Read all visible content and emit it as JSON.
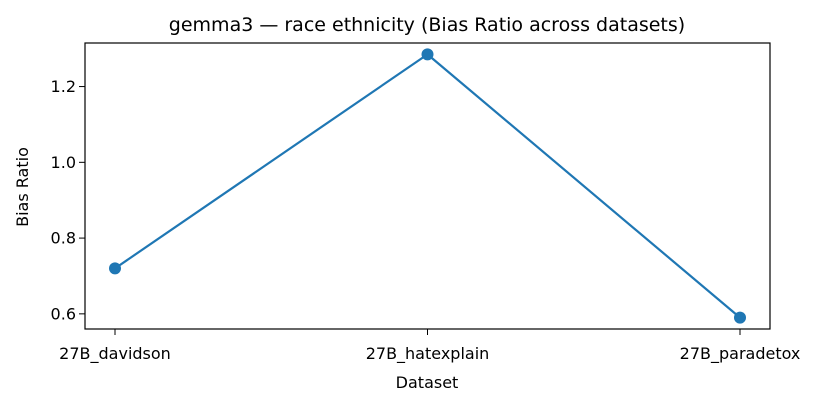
{
  "chart_data": {
    "type": "line",
    "title": "gemma3 — race ethnicity (Bias Ratio across datasets)",
    "xlabel": "Dataset",
    "ylabel": "Bias Ratio",
    "categories": [
      "27B_davidson",
      "27B_hatexplain",
      "27B_paradetox"
    ],
    "series": [
      {
        "values": [
          0.72,
          1.285,
          0.59
        ],
        "color": "#1f77b4",
        "marker": "circle"
      }
    ],
    "ylim": [
      0.56,
      1.315
    ],
    "yticks": [
      0.6,
      0.8,
      1.0,
      1.2
    ],
    "ytick_labels": [
      "0.6",
      "0.8",
      "1.0",
      "1.2"
    ],
    "grid": false,
    "legend": "none"
  }
}
